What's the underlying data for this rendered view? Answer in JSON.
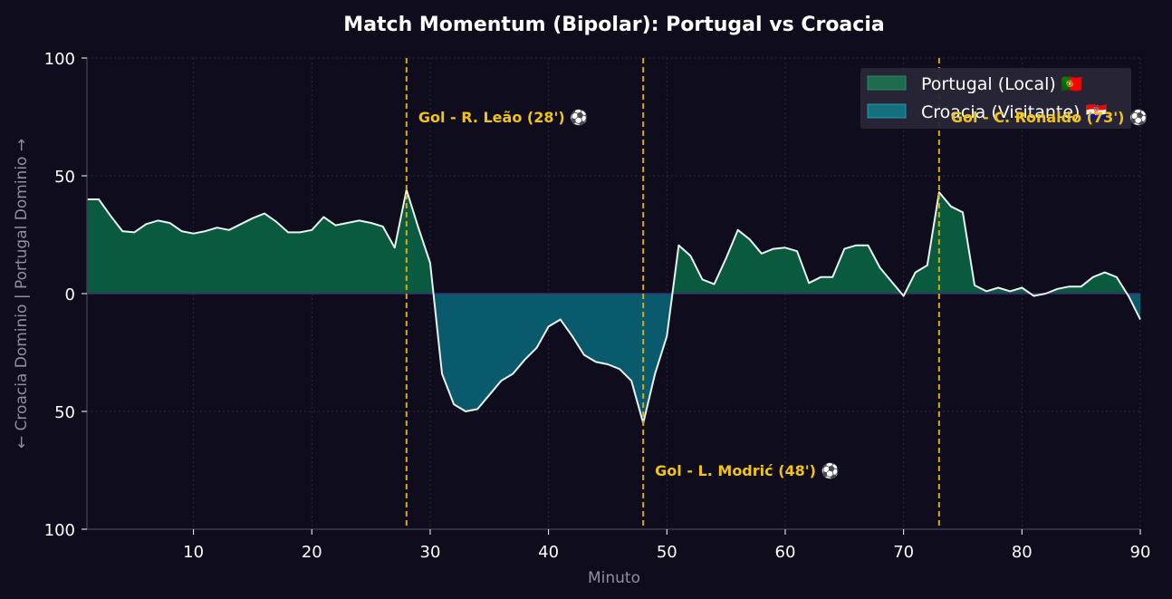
{
  "colors": {
    "background": "#0e0c1d",
    "home_fill": "#0a5a3f",
    "away_fill": "#0a5a6e",
    "line": "#e8f3ee",
    "goal_line": "#d4ac0d",
    "annotation": "#f2c40f",
    "grid": "#2a2840"
  },
  "chart_data": {
    "type": "area",
    "title": "Match Momentum (Bipolar): Portugal vs Croacia",
    "xlabel": "Minuto",
    "ylabel": "← Croacia Dominio | Portugal Dominio →",
    "xlim": [
      1,
      90
    ],
    "ylim": [
      -100,
      100
    ],
    "x_ticks": [
      10,
      20,
      30,
      40,
      50,
      60,
      70,
      80,
      90
    ],
    "y_ticks": [
      100,
      50,
      0,
      -50,
      -100
    ],
    "y_tick_labels": [
      "100",
      "50",
      "0",
      "50",
      "100"
    ],
    "grid": true,
    "legend_position": "top-right",
    "series": [
      {
        "name": "Portugal (Local) 🇵🇹",
        "color": "#1f6b4e",
        "x": [
          1,
          2,
          3,
          4,
          5,
          6,
          7,
          8,
          9,
          10,
          11,
          12,
          13,
          14,
          15,
          16,
          17,
          18,
          19,
          20,
          21,
          22,
          23,
          24,
          25,
          26,
          27,
          28,
          29,
          30,
          31,
          32,
          33,
          34,
          35,
          36,
          37,
          38,
          39,
          40,
          41,
          42,
          43,
          44,
          45,
          46,
          47,
          48,
          49,
          50,
          51,
          52,
          53,
          54,
          55,
          56,
          57,
          58,
          59,
          60,
          61,
          62,
          63,
          64,
          65,
          66,
          67,
          68,
          69,
          70,
          71,
          72,
          73,
          74,
          75,
          76,
          77,
          78,
          79,
          80,
          81,
          82,
          83,
          84,
          85,
          86,
          87,
          88,
          89,
          90
        ],
        "values": [
          40,
          40,
          33,
          26.5,
          26,
          29.5,
          31,
          30,
          26.5,
          25.5,
          26.5,
          28,
          27,
          29.5,
          32,
          34,
          30.5,
          26,
          26,
          27,
          32.5,
          29,
          30,
          31,
          30,
          28.5,
          19.5,
          44,
          28,
          13,
          -34,
          -47,
          -50,
          -49,
          -43,
          -37,
          -34,
          -28,
          -23,
          -14,
          -11,
          -18,
          -26,
          -29,
          -30,
          -32,
          -37,
          -55,
          -34,
          -18,
          20.5,
          16,
          6,
          4,
          15,
          27,
          23,
          17,
          19,
          19.5,
          18,
          4.5,
          7,
          7,
          19,
          20.5,
          20.5,
          11,
          5,
          -1,
          9,
          12,
          43,
          37,
          34.5,
          3.5,
          1,
          2.5,
          1,
          2.5,
          -1,
          0,
          2,
          3,
          3,
          7,
          9,
          7,
          -1,
          -11
        ]
      },
      {
        "name": "Croacia (Visitante) 🇭🇷",
        "color": "#14707f"
      }
    ],
    "goals": [
      {
        "minute": 28,
        "label": "Gol - R. Leão (28') ⚽",
        "side": "top"
      },
      {
        "minute": 48,
        "label": "Gol - L. Modrić (48') ⚽",
        "side": "bottom"
      },
      {
        "minute": 73,
        "label": "Gol - C. Ronaldo (73') ⚽",
        "side": "top"
      }
    ]
  }
}
